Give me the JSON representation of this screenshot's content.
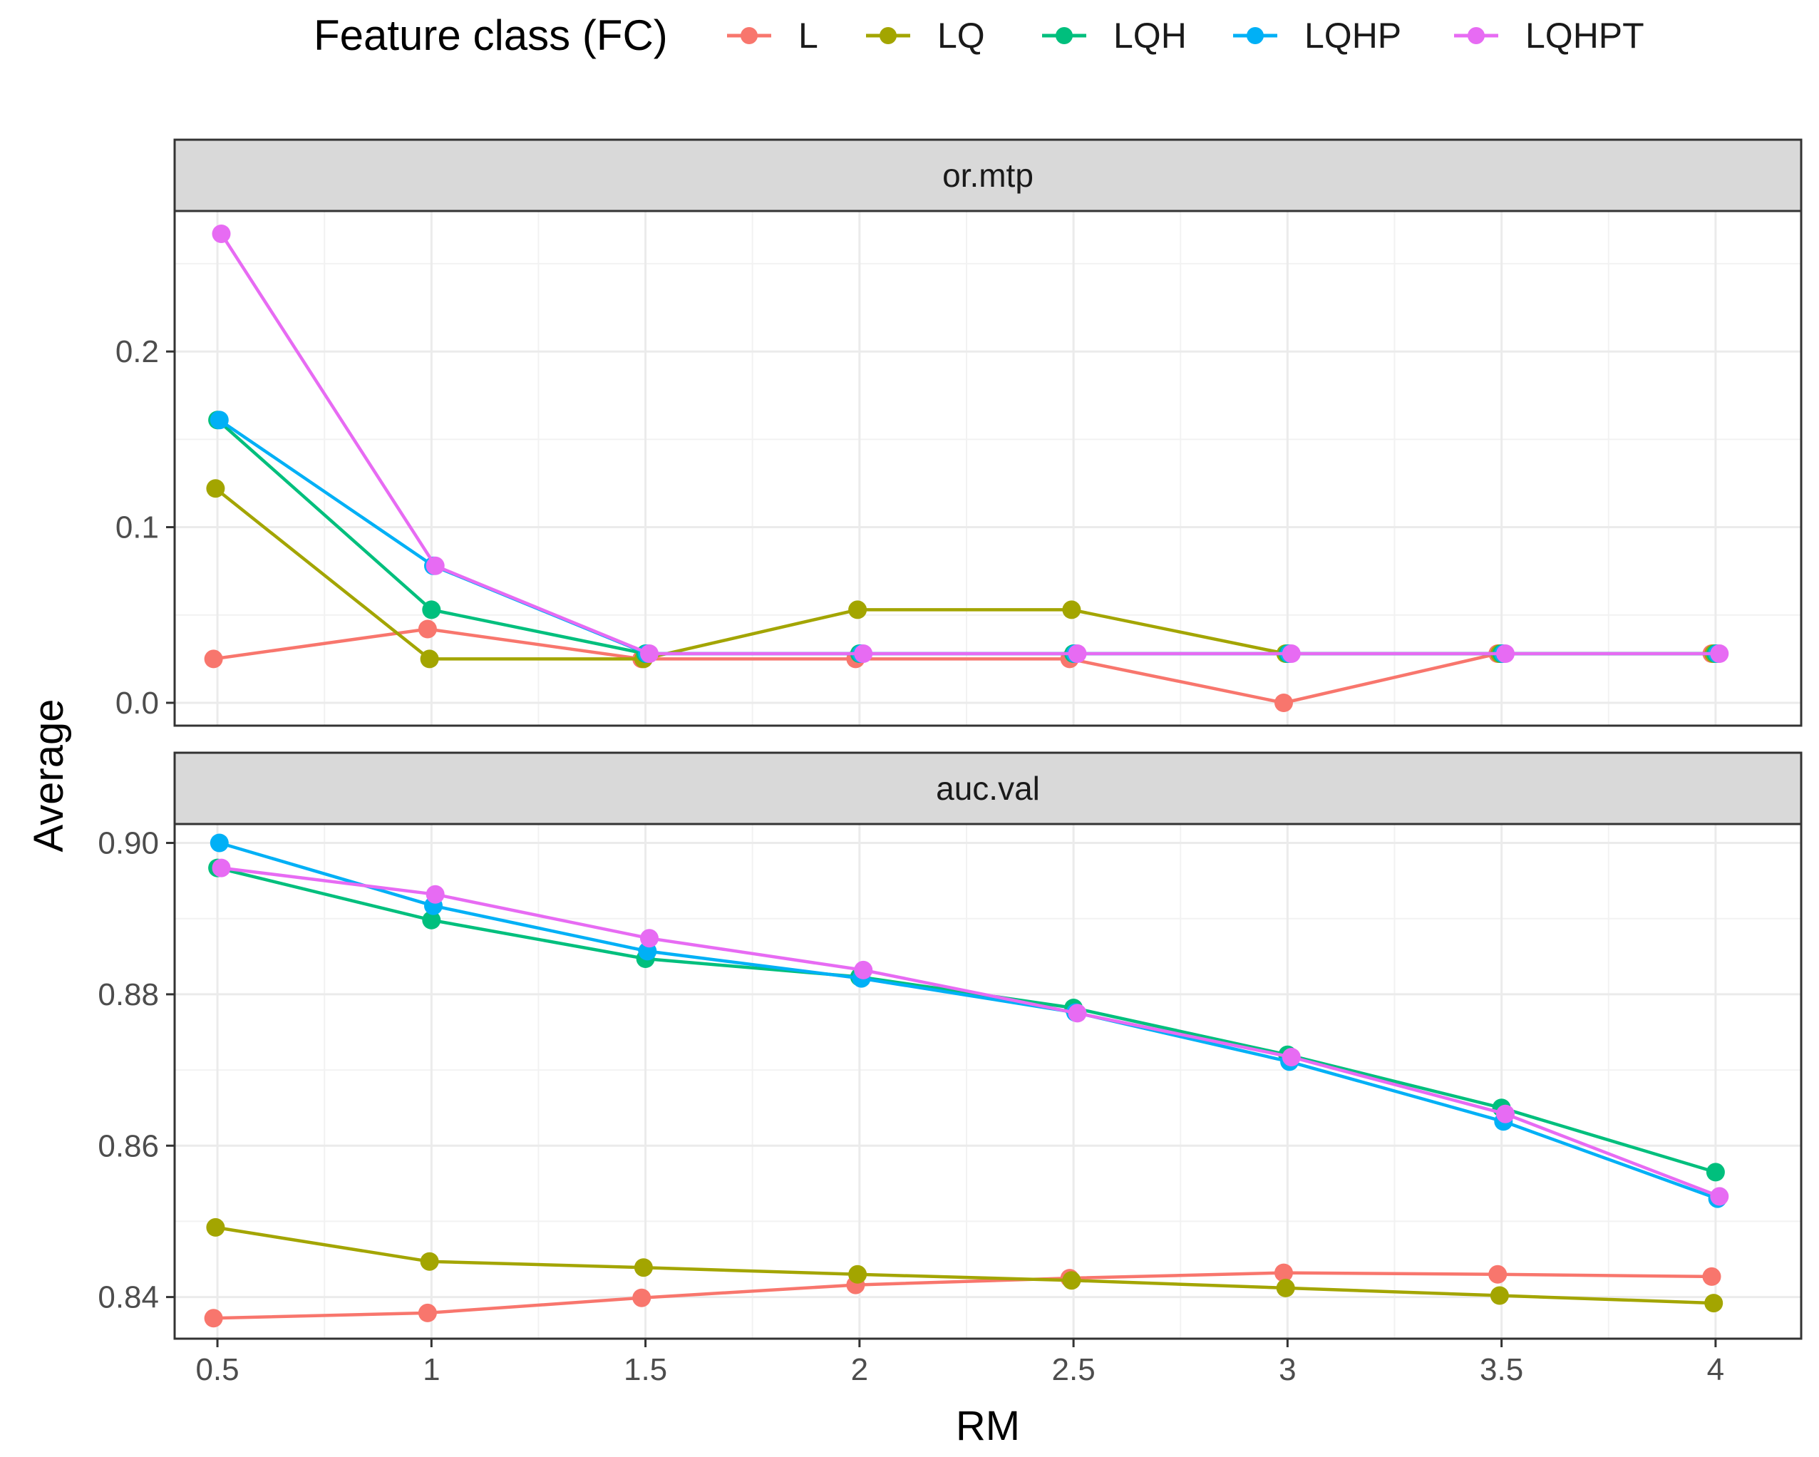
{
  "colors": {
    "L": "#F8766D",
    "LQ": "#A3A500",
    "LQH": "#00BF7D",
    "LQHP": "#00B0F6",
    "LQHPT": "#E76BF3"
  },
  "chart_data": {
    "type": "line",
    "legend": {
      "title": "Feature class (FC)",
      "entries": [
        "L",
        "LQ",
        "LQH",
        "LQHP",
        "LQHPT"
      ],
      "position": "top"
    },
    "x": [
      0.5,
      1,
      1.5,
      2,
      2.5,
      3,
      3.5,
      4
    ],
    "x_tick_labels": [
      "0.5",
      "1",
      "1.5",
      "2",
      "2.5",
      "3",
      "3.5",
      "4"
    ],
    "xlabel": "RM",
    "ylabel": "Average",
    "grid": true,
    "panels": [
      {
        "title": "or.mtp",
        "ylim": [
          -0.013,
          0.28
        ],
        "y_ticks": [
          0.0,
          0.1,
          0.2
        ],
        "y_tick_labels": [
          "0.0",
          "0.1",
          "0.2"
        ],
        "series": [
          {
            "name": "L",
            "values": [
              0.025,
              0.042,
              0.025,
              0.025,
              0.025,
              0.0,
              0.028,
              0.028
            ]
          },
          {
            "name": "LQ",
            "values": [
              0.122,
              0.025,
              0.025,
              0.053,
              0.053,
              0.028,
              0.028,
              0.028
            ]
          },
          {
            "name": "LQH",
            "values": [
              0.161,
              0.053,
              0.028,
              0.028,
              0.028,
              0.028,
              0.028,
              0.028
            ]
          },
          {
            "name": "LQHP",
            "values": [
              0.161,
              0.078,
              0.028,
              0.028,
              0.028,
              0.028,
              0.028,
              0.028
            ]
          },
          {
            "name": "LQHPT",
            "values": [
              0.267,
              0.078,
              0.028,
              0.028,
              0.028,
              0.028,
              0.028,
              0.028
            ]
          }
        ]
      },
      {
        "title": "auc.val",
        "ylim": [
          0.8345,
          0.9025
        ],
        "y_ticks": [
          0.84,
          0.86,
          0.88,
          0.9
        ],
        "y_tick_labels": [
          "0.84",
          "0.86",
          "0.88",
          "0.90"
        ],
        "series": [
          {
            "name": "L",
            "values": [
              0.8372,
              0.8379,
              0.8399,
              0.8416,
              0.8425,
              0.8432,
              0.843,
              0.8427
            ]
          },
          {
            "name": "LQ",
            "values": [
              0.8492,
              0.8447,
              0.8439,
              0.843,
              0.8422,
              0.8412,
              0.8402,
              0.8392
            ]
          },
          {
            "name": "LQH",
            "values": [
              0.8967,
              0.8898,
              0.8847,
              0.8823,
              0.8782,
              0.872,
              0.865,
              0.8565
            ]
          },
          {
            "name": "LQHP",
            "values": [
              0.9,
              0.8917,
              0.8857,
              0.8821,
              0.8776,
              0.8711,
              0.8632,
              0.853
            ]
          },
          {
            "name": "LQHPT",
            "values": [
              0.8967,
              0.8932,
              0.8874,
              0.8832,
              0.8775,
              0.8717,
              0.8642,
              0.8533
            ]
          }
        ]
      }
    ]
  }
}
